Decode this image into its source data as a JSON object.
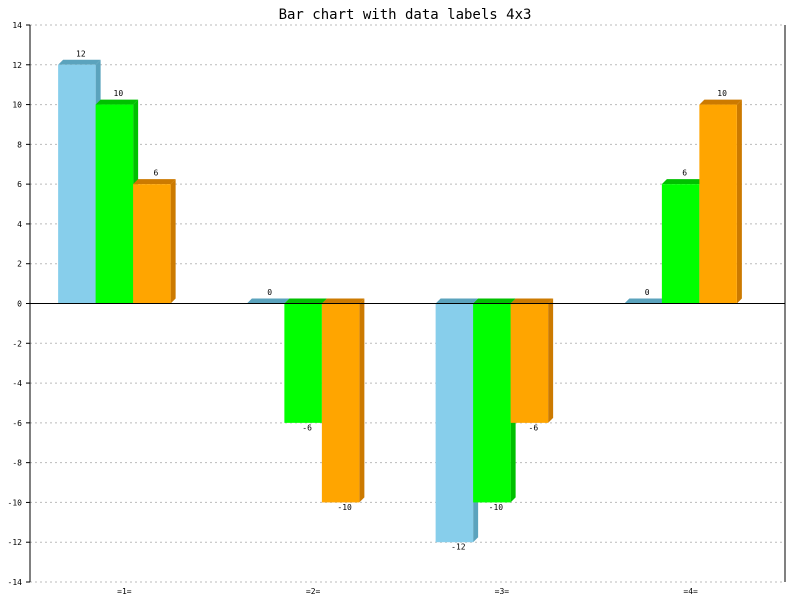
{
  "chart_data": {
    "type": "bar",
    "title": "Bar chart with data labels 4x3",
    "xlabel": "",
    "ylabel": "",
    "categories": [
      "=1=",
      "=2=",
      "=3=",
      "=4="
    ],
    "series": [
      {
        "values": [
          12,
          0,
          -12,
          0
        ],
        "color": "#87ceeb",
        "side": "#5ba3bd",
        "top": "#5ba3bd"
      },
      {
        "values": [
          10,
          -6,
          -10,
          6
        ],
        "color": "#00ff00",
        "side": "#00c000",
        "top": "#00c000"
      },
      {
        "values": [
          6,
          -10,
          -6,
          10
        ],
        "color": "#ffa500",
        "side": "#cc7a00",
        "top": "#cc7a00"
      }
    ],
    "ylim": [
      -14,
      14
    ],
    "yticks": [
      14,
      12,
      10,
      8,
      6,
      4,
      2,
      0,
      -2,
      -4,
      -6,
      -8,
      -10,
      -12,
      -14
    ],
    "grid": true,
    "bar_3d": true
  }
}
